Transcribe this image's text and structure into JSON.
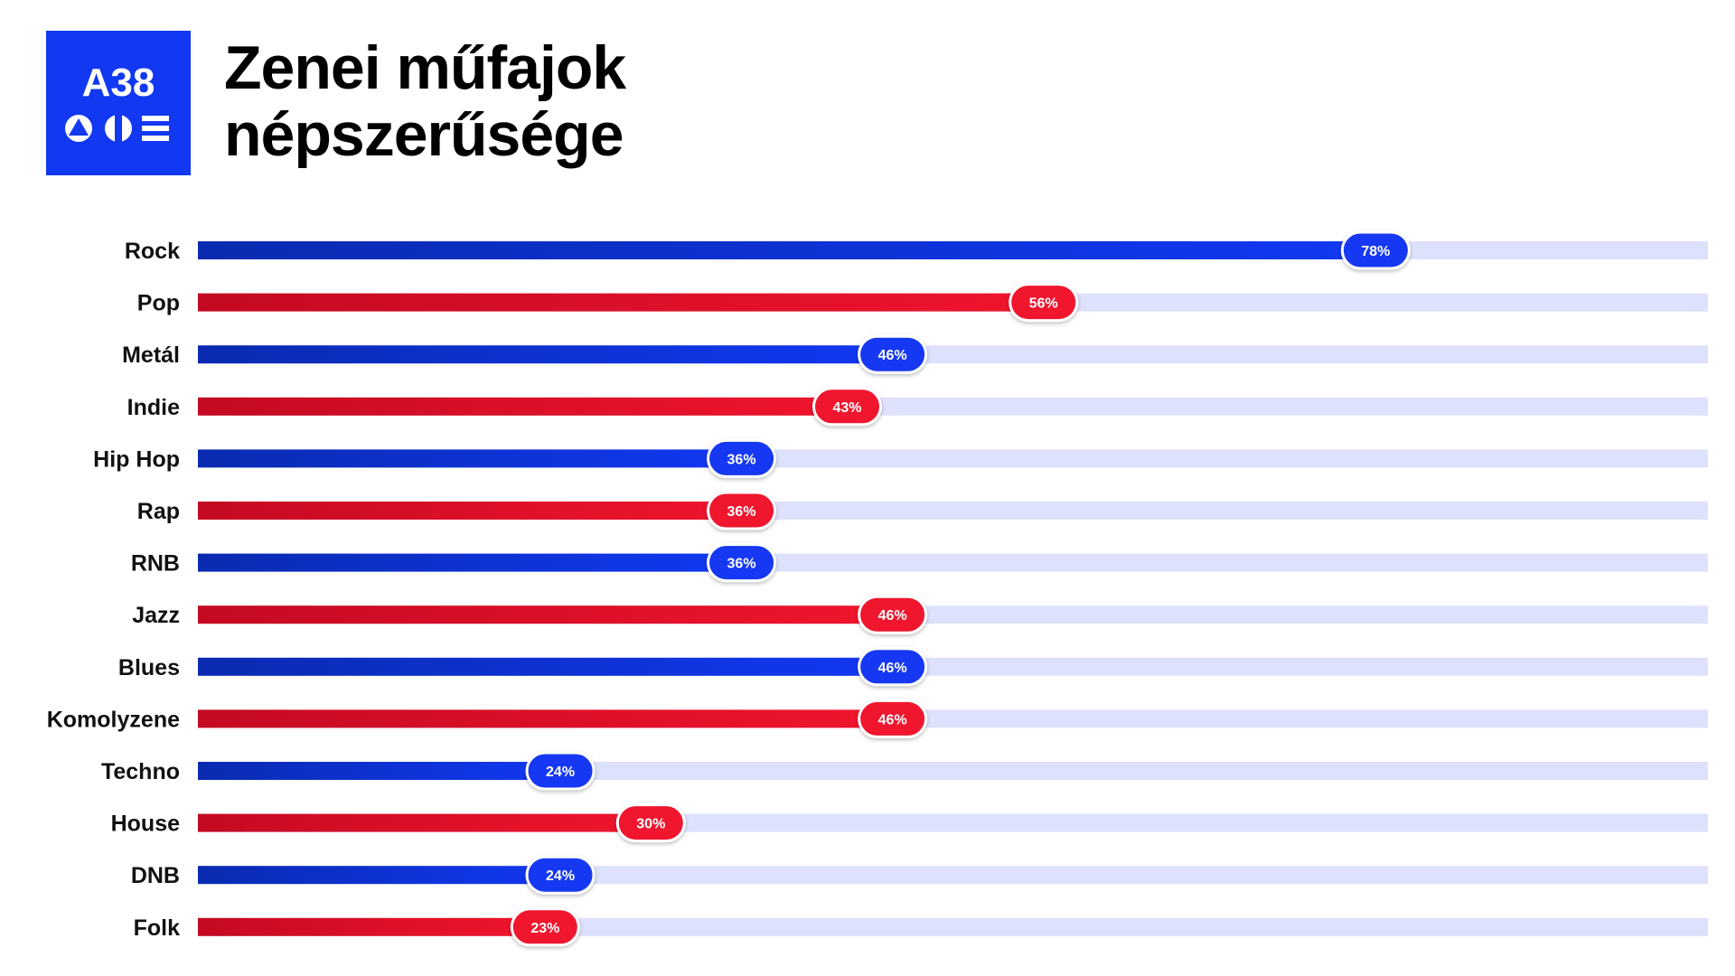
{
  "header": {
    "title_line1": "Zenei műfajok",
    "title_line2": "népszerűsége"
  },
  "logo": {
    "text": "A38",
    "icon": "a38-logo-icon",
    "color": "#1238f2"
  },
  "chart_data": {
    "type": "bar",
    "orientation": "horizontal",
    "title": "Zenei műfajok népszerűsége",
    "xlim": [
      0,
      100
    ],
    "grid": false,
    "categories": [
      "Rock",
      "Pop",
      "Metál",
      "Indie",
      "Hip Hop",
      "Rap",
      "RNB",
      "Jazz",
      "Blues",
      "Komolyzene",
      "Techno",
      "House",
      "DNB",
      "Folk"
    ],
    "values": [
      78,
      56,
      46,
      43,
      36,
      36,
      36,
      46,
      46,
      46,
      24,
      30,
      24,
      23
    ],
    "value_labels": [
      "78%",
      "56%",
      "46%",
      "43%",
      "36%",
      "36%",
      "36%",
      "46%",
      "46%",
      "46%",
      "24%",
      "30%",
      "24%",
      "23%"
    ],
    "bar_colors": [
      "blue",
      "red",
      "blue",
      "red",
      "blue",
      "red",
      "blue",
      "red",
      "blue",
      "red",
      "blue",
      "red",
      "blue",
      "red"
    ],
    "colors": {
      "blue_start": "#0a2bb0",
      "blue_end": "#1238f2",
      "red_start": "#c40a22",
      "red_end": "#f0152d",
      "track": "#dde1fb"
    }
  }
}
